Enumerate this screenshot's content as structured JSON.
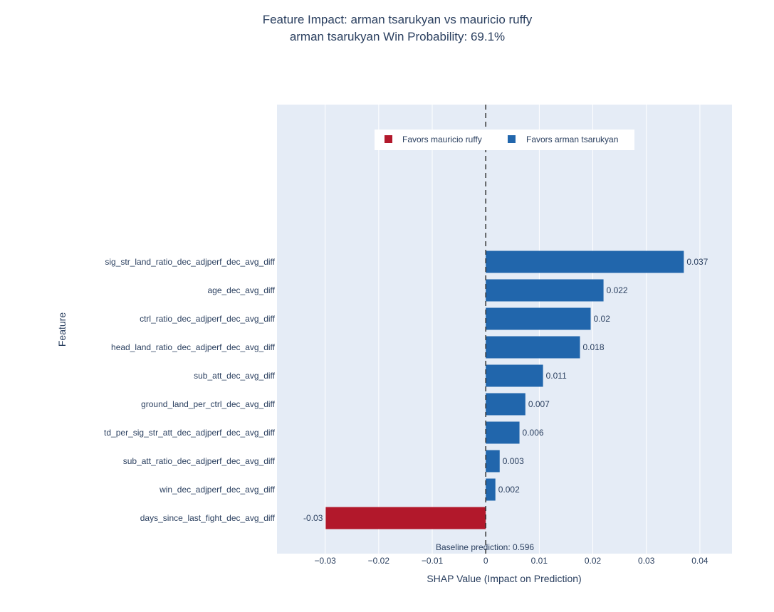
{
  "chart_data": {
    "type": "bar",
    "orientation": "horizontal",
    "title": "Feature Impact: arman tsarukyan vs mauricio ruffy",
    "subtitle": "arman tsarukyan Win Probability: 69.1%",
    "xlabel": "SHAP Value (Impact on Prediction)",
    "ylabel": "Feature",
    "xlim": [
      -0.039,
      0.046
    ],
    "xticks": [
      -0.03,
      -0.02,
      -0.01,
      0,
      0.01,
      0.02,
      0.03,
      0.04
    ],
    "xtick_labels": [
      "−0.03",
      "−0.02",
      "−0.01",
      "0",
      "0.01",
      "0.02",
      "0.03",
      "0.04"
    ],
    "grid": true,
    "legend_position": "top-center",
    "legend": [
      {
        "name": "Favors mauricio ruffy",
        "color": "#b2182b"
      },
      {
        "name": "Favors arman tsarukyan",
        "color": "#2166ac"
      }
    ],
    "categories": [
      "sig_str_land_ratio_dec_adjperf_dec_avg_diff",
      "age_dec_avg_diff",
      "ctrl_ratio_dec_adjperf_dec_avg_diff",
      "head_land_ratio_dec_adjperf_dec_avg_diff",
      "sub_att_dec_avg_diff",
      "ground_land_per_ctrl_dec_avg_diff",
      "td_per_sig_str_att_dec_adjperf_dec_avg_diff",
      "sub_att_ratio_dec_adjperf_dec_avg_diff",
      "win_dec_adjperf_dec_avg_diff",
      "days_since_last_fight_dec_avg_diff"
    ],
    "values": [
      0.037,
      0.022,
      0.0196,
      0.0176,
      0.0107,
      0.0074,
      0.0063,
      0.0026,
      0.0018,
      -0.0299
    ],
    "value_labels": [
      "0.037",
      "0.022",
      "0.02",
      "0.018",
      "0.011",
      "0.007",
      "0.006",
      "0.003",
      "0.002",
      "-0.03"
    ],
    "reference_line": 0,
    "annotation": "Baseline prediction: 0.596"
  }
}
